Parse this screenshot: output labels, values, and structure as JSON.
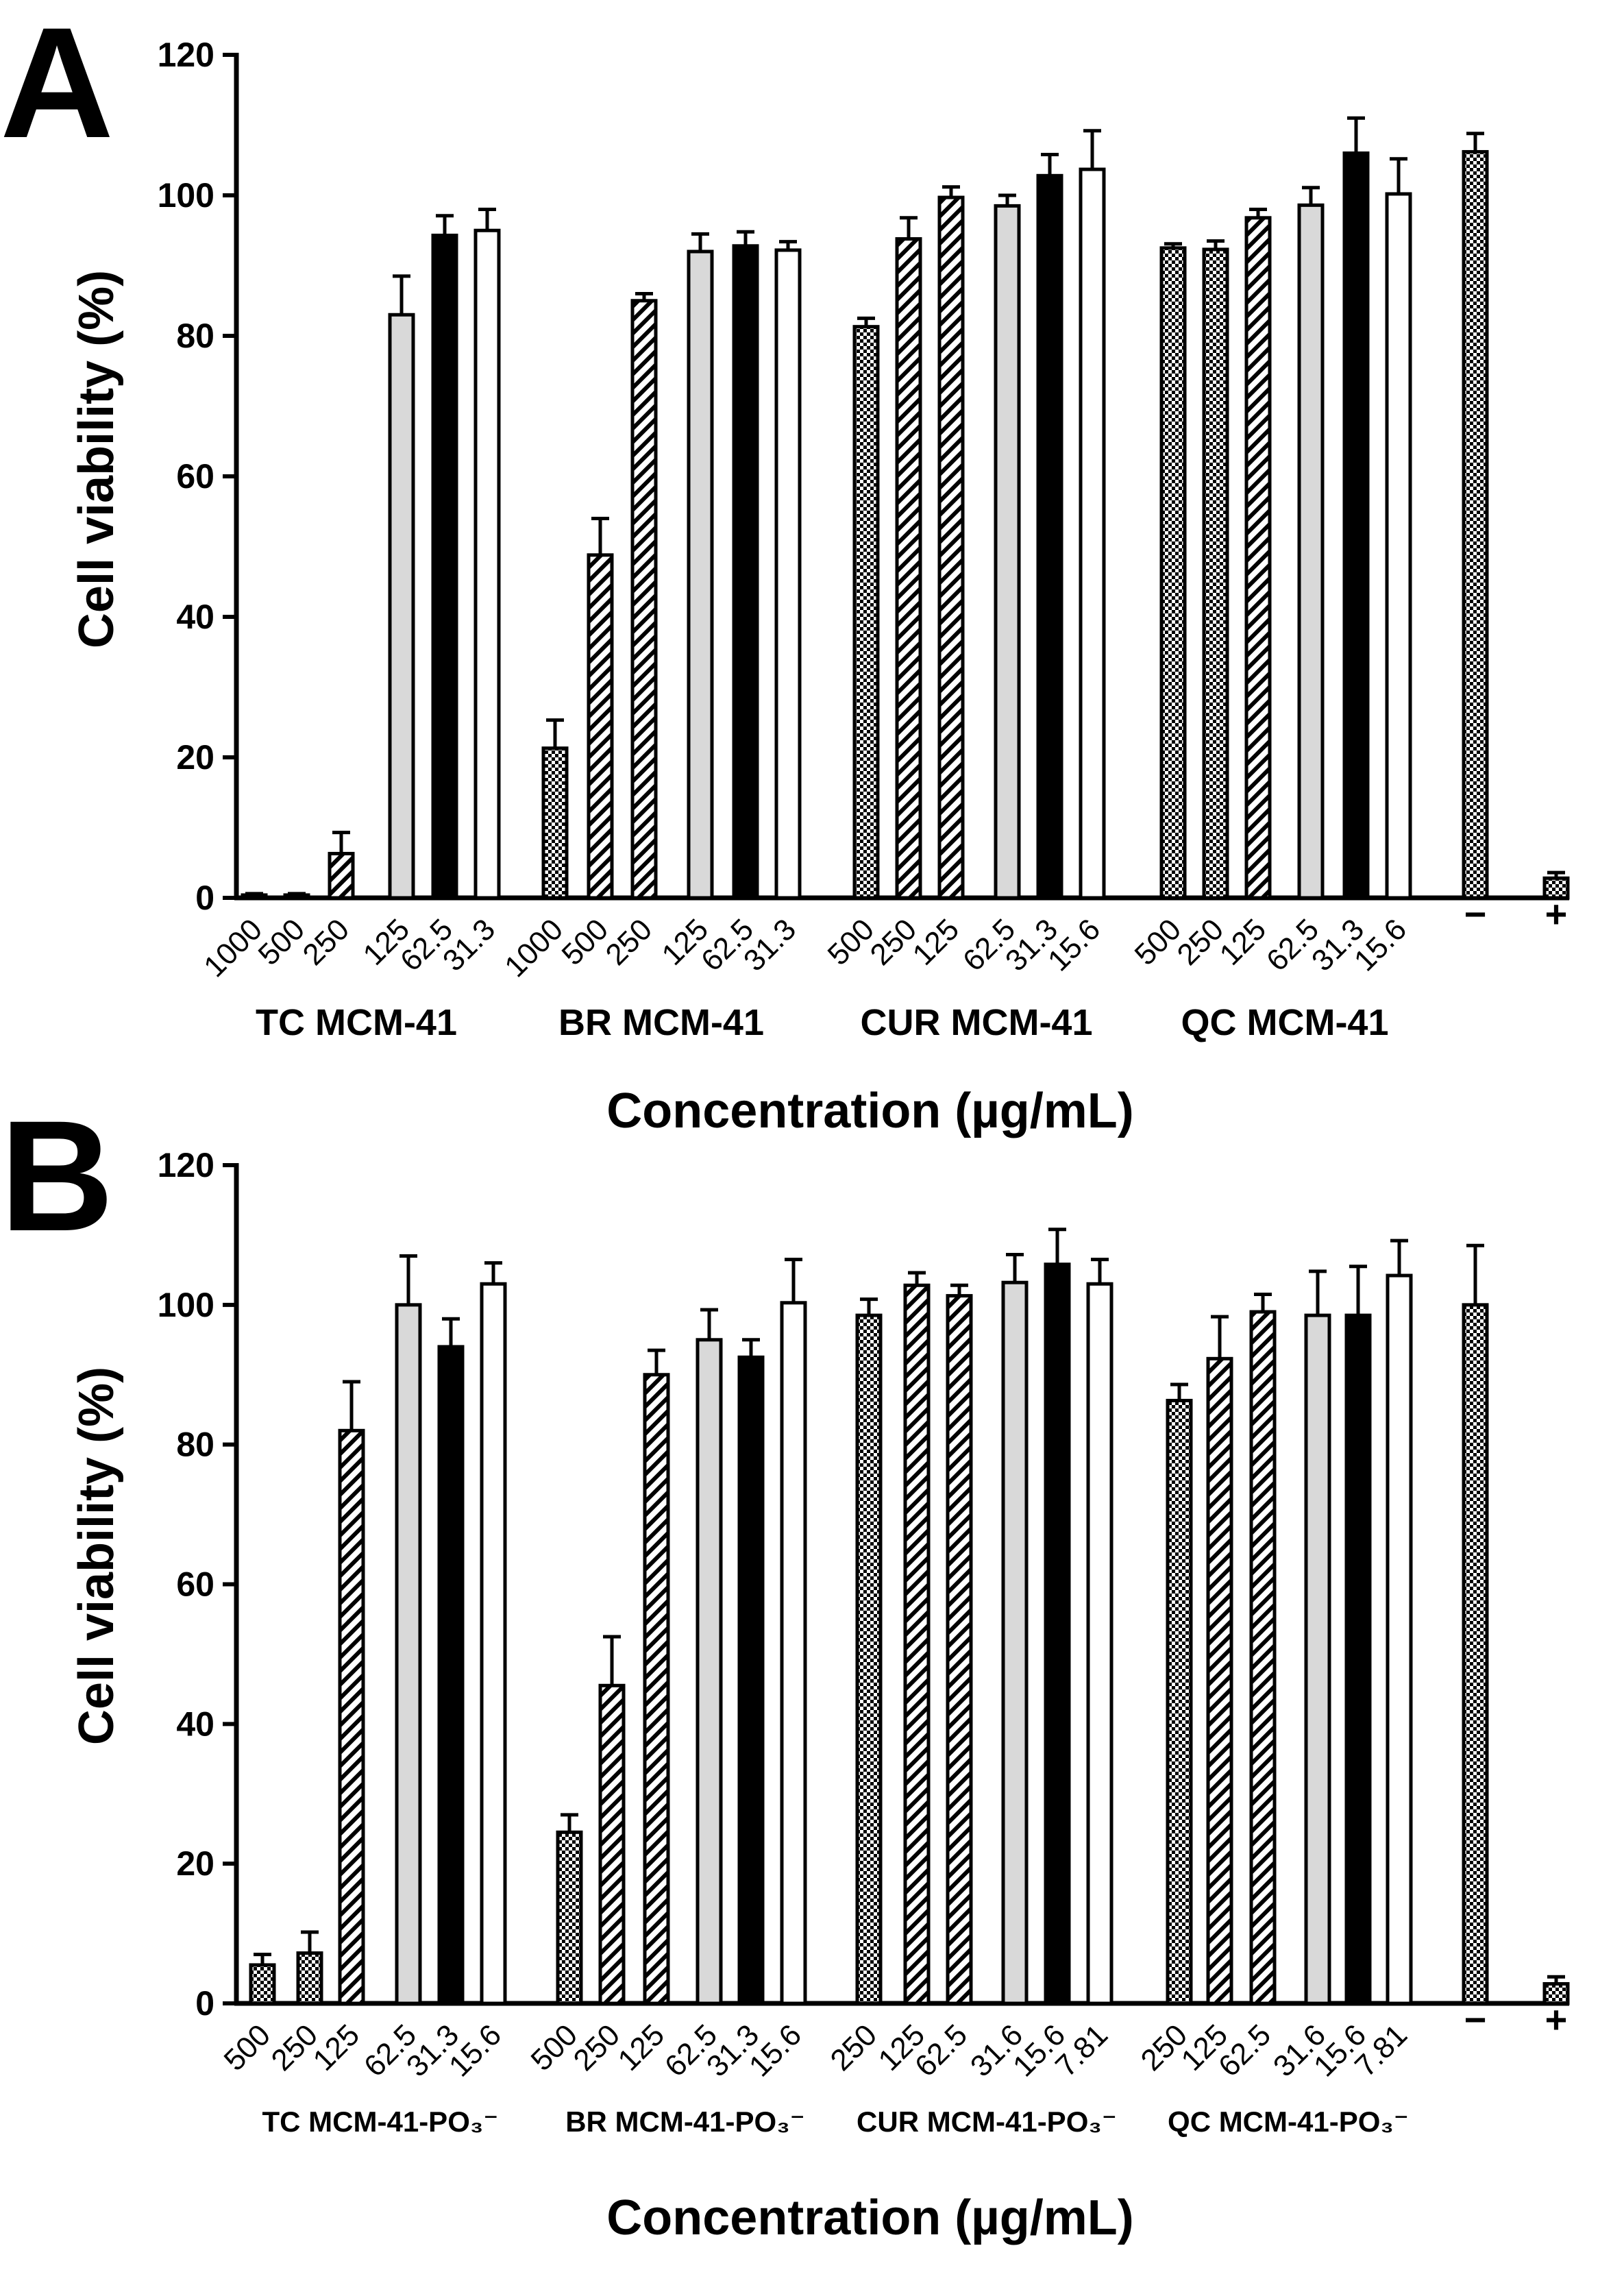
{
  "chart_data": [
    {
      "panel": "A",
      "type": "bar",
      "ylabel": "Cell viability (%)",
      "xlabel": "Concentration (µg/mL)",
      "ylim": [
        0,
        120
      ],
      "yticks": [
        0,
        20,
        40,
        60,
        80,
        100,
        120
      ],
      "bars": [
        {
          "group": "TC MCM-41",
          "label": "1000",
          "value": 0.4,
          "error": 0.2,
          "pattern": "cross"
        },
        {
          "group": "TC MCM-41",
          "label": "500",
          "value": 0.4,
          "error": 0.2,
          "pattern": "cross"
        },
        {
          "group": "TC MCM-41",
          "label": "250",
          "value": 6.3,
          "error": 3.0,
          "pattern": "hatch"
        },
        {
          "group": "TC MCM-41",
          "label": "125",
          "value": 83.0,
          "error": 5.5,
          "pattern": "gray"
        },
        {
          "group": "TC MCM-41",
          "label": "62.5",
          "value": 94.3,
          "error": 2.8,
          "pattern": "black"
        },
        {
          "group": "TC MCM-41",
          "label": "31.3",
          "value": 95.0,
          "error": 3.0,
          "pattern": "white"
        },
        {
          "group": "BR MCM-41",
          "label": "1000",
          "value": 21.3,
          "error": 4.0,
          "pattern": "cross"
        },
        {
          "group": "BR MCM-41",
          "label": "500",
          "value": 48.8,
          "error": 5.2,
          "pattern": "hatch"
        },
        {
          "group": "BR MCM-41",
          "label": "250",
          "value": 85.0,
          "error": 1.0,
          "pattern": "hatch"
        },
        {
          "group": "BR MCM-41",
          "label": "125",
          "value": 92.0,
          "error": 2.5,
          "pattern": "gray"
        },
        {
          "group": "BR MCM-41",
          "label": "62.5",
          "value": 92.8,
          "error": 2.0,
          "pattern": "black"
        },
        {
          "group": "BR MCM-41",
          "label": "31.3",
          "value": 92.2,
          "error": 1.2,
          "pattern": "white"
        },
        {
          "group": "CUR MCM-41",
          "label": "500",
          "value": 81.3,
          "error": 1.2,
          "pattern": "cross"
        },
        {
          "group": "CUR MCM-41",
          "label": "250",
          "value": 93.8,
          "error": 3.0,
          "pattern": "hatch"
        },
        {
          "group": "CUR MCM-41",
          "label": "125",
          "value": 99.7,
          "error": 1.5,
          "pattern": "hatch"
        },
        {
          "group": "CUR MCM-41",
          "label": "62.5",
          "value": 98.5,
          "error": 1.5,
          "pattern": "gray"
        },
        {
          "group": "CUR MCM-41",
          "label": "31.3",
          "value": 102.8,
          "error": 3.0,
          "pattern": "black"
        },
        {
          "group": "CUR MCM-41",
          "label": "15.6",
          "value": 103.7,
          "error": 5.5,
          "pattern": "white"
        },
        {
          "group": "QC MCM-41",
          "label": "500",
          "value": 92.5,
          "error": 0.6,
          "pattern": "cross"
        },
        {
          "group": "QC MCM-41",
          "label": "250",
          "value": 92.3,
          "error": 1.2,
          "pattern": "cross"
        },
        {
          "group": "QC MCM-41",
          "label": "125",
          "value": 96.8,
          "error": 1.2,
          "pattern": "hatch"
        },
        {
          "group": "QC MCM-41",
          "label": "62.5",
          "value": 98.6,
          "error": 2.5,
          "pattern": "gray"
        },
        {
          "group": "QC MCM-41",
          "label": "31.3",
          "value": 106.0,
          "error": 5.0,
          "pattern": "black"
        },
        {
          "group": "QC MCM-41",
          "label": "15.6",
          "value": 100.2,
          "error": 5.0,
          "pattern": "white"
        },
        {
          "group": "",
          "label": "−",
          "value": 106.2,
          "error": 2.6,
          "pattern": "cross"
        },
        {
          "group": "",
          "label": "+",
          "value": 2.8,
          "error": 0.8,
          "pattern": "cross"
        }
      ],
      "groups": [
        "TC MCM-41",
        "BR MCM-41",
        "CUR MCM-41",
        "QC MCM-41"
      ]
    },
    {
      "panel": "B",
      "type": "bar",
      "ylabel": "Cell viability (%)",
      "xlabel": "Concentration (µg/mL)",
      "ylim": [
        0,
        120
      ],
      "yticks": [
        0,
        20,
        40,
        60,
        80,
        100,
        120
      ],
      "bars": [
        {
          "group": "TC MCM-41-PO₃⁻",
          "label": "500",
          "value": 5.5,
          "error": 1.5,
          "pattern": "cross"
        },
        {
          "group": "TC MCM-41-PO₃⁻",
          "label": "250",
          "value": 7.2,
          "error": 3.0,
          "pattern": "cross"
        },
        {
          "group": "TC MCM-41-PO₃⁻",
          "label": "125",
          "value": 82.0,
          "error": 7.0,
          "pattern": "hatch"
        },
        {
          "group": "TC MCM-41-PO₃⁻",
          "label": "62.5",
          "value": 100.0,
          "error": 7.0,
          "pattern": "gray"
        },
        {
          "group": "TC MCM-41-PO₃⁻",
          "label": "31.3",
          "value": 94.0,
          "error": 4.0,
          "pattern": "black"
        },
        {
          "group": "TC MCM-41-PO₃⁻",
          "label": "15.6",
          "value": 103.0,
          "error": 3.0,
          "pattern": "white"
        },
        {
          "group": "BR MCM-41-PO₃⁻",
          "label": "500",
          "value": 24.5,
          "error": 2.5,
          "pattern": "cross"
        },
        {
          "group": "BR MCM-41-PO₃⁻",
          "label": "250",
          "value": 45.5,
          "error": 7.0,
          "pattern": "hatch"
        },
        {
          "group": "BR MCM-41-PO₃⁻",
          "label": "125",
          "value": 90.0,
          "error": 3.5,
          "pattern": "hatch"
        },
        {
          "group": "BR MCM-41-PO₃⁻",
          "label": "62.5",
          "value": 95.0,
          "error": 4.3,
          "pattern": "gray"
        },
        {
          "group": "BR MCM-41-PO₃⁻",
          "label": "31.3",
          "value": 92.5,
          "error": 2.5,
          "pattern": "black"
        },
        {
          "group": "BR MCM-41-PO₃⁻",
          "label": "15.6",
          "value": 100.3,
          "error": 6.2,
          "pattern": "white"
        },
        {
          "group": "CUR MCM-41-PO₃⁻",
          "label": "250",
          "value": 98.5,
          "error": 2.3,
          "pattern": "cross"
        },
        {
          "group": "CUR MCM-41-PO₃⁻",
          "label": "125",
          "value": 102.8,
          "error": 1.8,
          "pattern": "hatch"
        },
        {
          "group": "CUR MCM-41-PO₃⁻",
          "label": "62.5",
          "value": 101.3,
          "error": 1.5,
          "pattern": "hatch"
        },
        {
          "group": "CUR MCM-41-PO₃⁻",
          "label": "31.6",
          "value": 103.2,
          "error": 4.0,
          "pattern": "gray"
        },
        {
          "group": "CUR MCM-41-PO₃⁻",
          "label": "15.6",
          "value": 105.8,
          "error": 5.0,
          "pattern": "black"
        },
        {
          "group": "CUR MCM-41-PO₃⁻",
          "label": "7.81",
          "value": 103.0,
          "error": 3.5,
          "pattern": "white"
        },
        {
          "group": "QC MCM-41-PO₃⁻",
          "label": "250",
          "value": 86.3,
          "error": 2.3,
          "pattern": "cross"
        },
        {
          "group": "QC MCM-41-PO₃⁻",
          "label": "125",
          "value": 92.3,
          "error": 6.0,
          "pattern": "hatch"
        },
        {
          "group": "QC MCM-41-PO₃⁻",
          "label": "62.5",
          "value": 99.0,
          "error": 2.5,
          "pattern": "hatch"
        },
        {
          "group": "QC MCM-41-PO₃⁻",
          "label": "31.6",
          "value": 98.5,
          "error": 6.3,
          "pattern": "gray"
        },
        {
          "group": "QC MCM-41-PO₃⁻",
          "label": "15.6",
          "value": 98.5,
          "error": 7.0,
          "pattern": "black"
        },
        {
          "group": "QC MCM-41-PO₃⁻",
          "label": "7.81",
          "value": 104.2,
          "error": 5.0,
          "pattern": "white"
        },
        {
          "group": "",
          "label": "−",
          "value": 100.0,
          "error": 8.5,
          "pattern": "cross"
        },
        {
          "group": "",
          "label": "+",
          "value": 2.8,
          "error": 1.0,
          "pattern": "cross"
        }
      ],
      "groups": [
        "TC MCM-41-PO₃⁻",
        "BR MCM-41-PO₃⁻",
        "CUR MCM-41-PO₃⁻",
        "QC MCM-41-PO₃⁻"
      ]
    }
  ],
  "colors": {
    "ink": "#000000",
    "gray_fill": "#d9d9d9",
    "background": "#ffffff"
  }
}
